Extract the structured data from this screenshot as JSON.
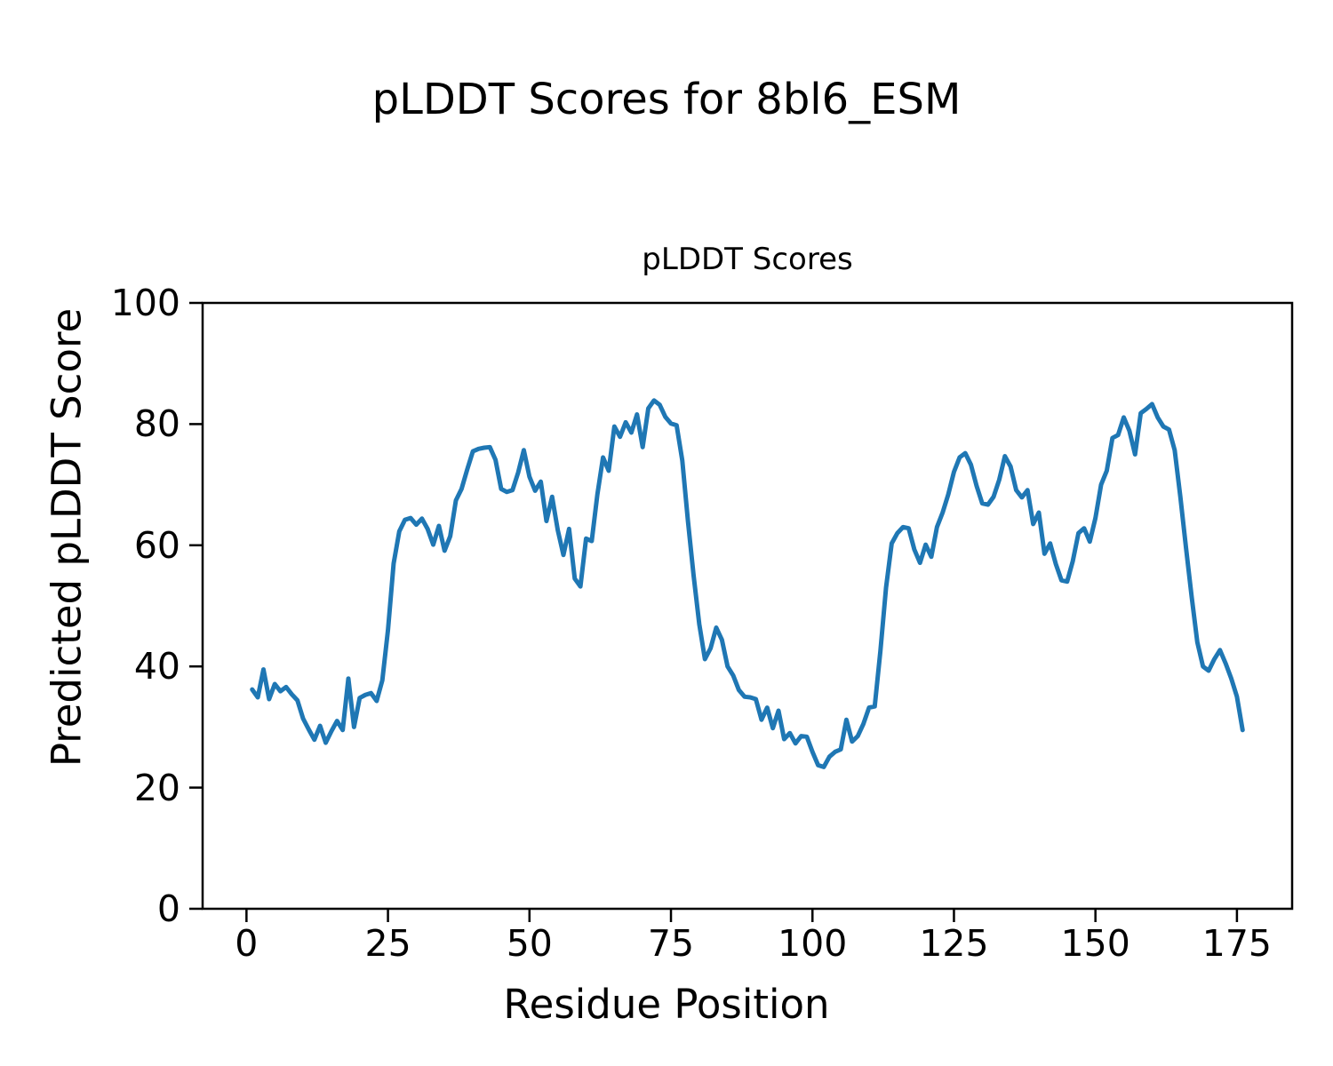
{
  "figure": {
    "suptitle": "pLDDT Scores for 8bl6_ESM",
    "background": "#ffffff",
    "text_color": "#000000"
  },
  "chart_data": {
    "type": "line",
    "title": "pLDDT Scores",
    "xlabel": "Residue Position",
    "ylabel": "Predicted pLDDT Score",
    "grid": false,
    "legend": "none",
    "line_color": "#1f77b4",
    "x_ticks": [
      0,
      25,
      50,
      75,
      100,
      125,
      150,
      175
    ],
    "y_ticks": [
      0,
      20,
      40,
      60,
      80,
      100
    ],
    "xlim": [
      -7.75,
      184.75
    ],
    "ylim": [
      0,
      100
    ],
    "x_start": 1,
    "series": [
      {
        "name": "pLDDT",
        "values": [
          36.2,
          34.9,
          39.5,
          34.6,
          37.1,
          35.9,
          36.6,
          35.4,
          34.4,
          31.4,
          29.6,
          27.9,
          30.2,
          27.4,
          29.3,
          31.0,
          29.5,
          38.0,
          30.0,
          34.8,
          35.3,
          35.6,
          34.3,
          37.7,
          46.0,
          57.0,
          62.3,
          64.2,
          64.5,
          63.4,
          64.4,
          62.7,
          60.1,
          63.2,
          59.1,
          61.5,
          67.4,
          69.3,
          72.5,
          75.5,
          75.9,
          76.1,
          76.2,
          74.1,
          69.3,
          68.8,
          69.1,
          72.0,
          75.7,
          71.3,
          69.0,
          70.5,
          64.0,
          68.0,
          62.5,
          58.4,
          62.7,
          54.5,
          53.2,
          61.1,
          60.7,
          68.4,
          74.5,
          72.3,
          79.6,
          77.9,
          80.3,
          78.6,
          81.6,
          76.2,
          82.6,
          83.9,
          83.2,
          81.2,
          80.1,
          79.8,
          74.0,
          64.0,
          55.0,
          47.0,
          41.2,
          43.0,
          46.4,
          44.4,
          40.0,
          38.5,
          36.1,
          35.0,
          34.9,
          34.6,
          31.2,
          33.2,
          29.8,
          32.7,
          28.0,
          29.0,
          27.3,
          28.5,
          28.4,
          25.9,
          23.7,
          23.4,
          25.1,
          25.9,
          26.3,
          31.2,
          27.6,
          28.5,
          30.5,
          33.2,
          33.4,
          42.5,
          53.0,
          60.3,
          62.0,
          63.0,
          62.8,
          59.3,
          57.1,
          60.1,
          58.1,
          63.0,
          65.4,
          68.4,
          72.1,
          74.5,
          75.2,
          73.3,
          69.8,
          66.9,
          66.7,
          68.0,
          70.8,
          74.7,
          73.0,
          69.1,
          67.9,
          69.1,
          63.5,
          65.4,
          58.6,
          60.3,
          56.9,
          54.2,
          54.0,
          57.4,
          62.0,
          62.8,
          60.6,
          64.5,
          70.0,
          72.3,
          77.7,
          78.2,
          81.1,
          78.9,
          75.0,
          81.8,
          82.5,
          83.3,
          81.1,
          79.6,
          79.1,
          75.7,
          68.0,
          59.6,
          51.5,
          44.0,
          40.0,
          39.3,
          41.2,
          42.7,
          40.5,
          38.0,
          35.0,
          29.5
        ]
      }
    ]
  }
}
